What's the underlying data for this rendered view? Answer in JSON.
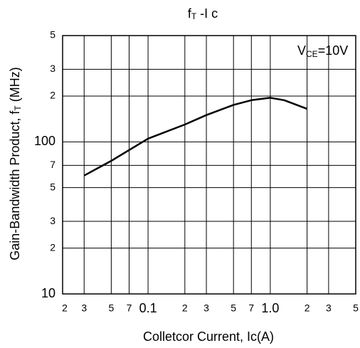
{
  "chart_data": {
    "type": "line",
    "title": {
      "main": "f",
      "sub": "T",
      "rest": " -I c"
    },
    "annotation": {
      "main": "V",
      "sub": "CE",
      "rest": "=10V"
    },
    "y_label": {
      "main": "Gain-Bandwidth Product, f",
      "sub": "T",
      "rest": " (MHz)"
    },
    "x_label": "Colletcor Current, Ic(A)",
    "log_x": true,
    "log_y": true,
    "grid": true,
    "xlim": [
      0.02,
      5
    ],
    "ylim": [
      10,
      500
    ],
    "xticks": [
      {
        "value": 0.02,
        "label": "2"
      },
      {
        "value": 0.03,
        "label": "3"
      },
      {
        "value": 0.05,
        "label": "5"
      },
      {
        "value": 0.07,
        "label": "7"
      },
      0.1,
      {
        "value": 0.2,
        "label": "2"
      },
      {
        "value": 0.3,
        "label": "3"
      },
      {
        "value": 0.5,
        "label": "5"
      },
      {
        "value": 0.7,
        "label": "7"
      },
      {
        "value": 1,
        "label": "1.0"
      },
      {
        "value": 2,
        "label": "2"
      },
      {
        "value": 3,
        "label": "3"
      },
      {
        "value": 5,
        "label": "5"
      }
    ],
    "yticks": [
      10,
      {
        "value": 20,
        "label": "2"
      },
      {
        "value": 30,
        "label": "3"
      },
      {
        "value": 50,
        "label": "5"
      },
      {
        "value": 70,
        "label": "7"
      },
      100,
      {
        "value": 200,
        "label": "2"
      },
      {
        "value": 300,
        "label": "3"
      },
      {
        "value": 500,
        "label": "5"
      }
    ],
    "series": [
      {
        "name": "fT",
        "color": "#000000",
        "x": [
          0.03,
          0.05,
          0.1,
          0.2,
          0.3,
          0.5,
          0.7,
          1.0,
          1.3,
          2.0
        ],
        "values": [
          60,
          75,
          105,
          130,
          150,
          175,
          188,
          195,
          188,
          165
        ]
      }
    ]
  }
}
